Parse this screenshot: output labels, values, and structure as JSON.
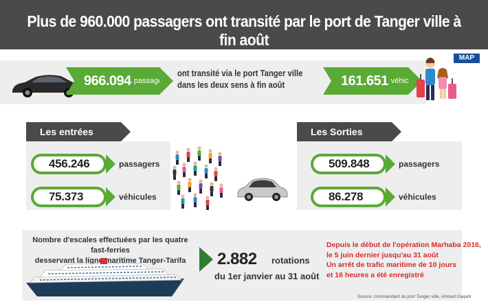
{
  "header": {
    "title": "Plus de 960.000 passagers ont transité par le port de Tanger ville à fin août"
  },
  "logo": {
    "text": "MAP"
  },
  "totals": {
    "passengers_value": "966.094",
    "passengers_unit": "passagers",
    "vehicles_value": "161.651",
    "vehicles_unit": "véhicules",
    "caption_line1": "ont transité via le port Tanger ville",
    "caption_line2": "dans les deux sens à fin août"
  },
  "entrees": {
    "title": "Les entrées",
    "passengers_value": "456.246",
    "passengers_label": "passagers",
    "vehicles_value": "75.373",
    "vehicles_label": "véhicules"
  },
  "sorties": {
    "title": "Les Sorties",
    "passengers_value": "509.848",
    "passengers_label": "passagers",
    "vehicles_value": "86.278",
    "vehicles_label": "véhicules"
  },
  "escales": {
    "line1": "Nombre d'escales effectuées par les quatre fast-ferries",
    "line2": "desservant la ligne maritime Tanger-Tarifa"
  },
  "rotations": {
    "value": "2.882",
    "unit": "rotations",
    "period": "du 1er janvier au 31 août"
  },
  "marhaba": {
    "line1": "Depuis le début de l'opération Marhaba 2016,",
    "line2": "le 5 juin dernier jusqu'au 31 août",
    "line3": "Un arrêt de trafic maritime de 10 jours",
    "line4": "et 16 heures a été enregistré"
  },
  "source": {
    "text": "Source: commandant du port Tanger ville, Ahmed Oaqabi"
  },
  "colors": {
    "header_bg": "#4a4a4a",
    "accent_green": "#5aaa36",
    "alert_red": "#d62a2a"
  }
}
